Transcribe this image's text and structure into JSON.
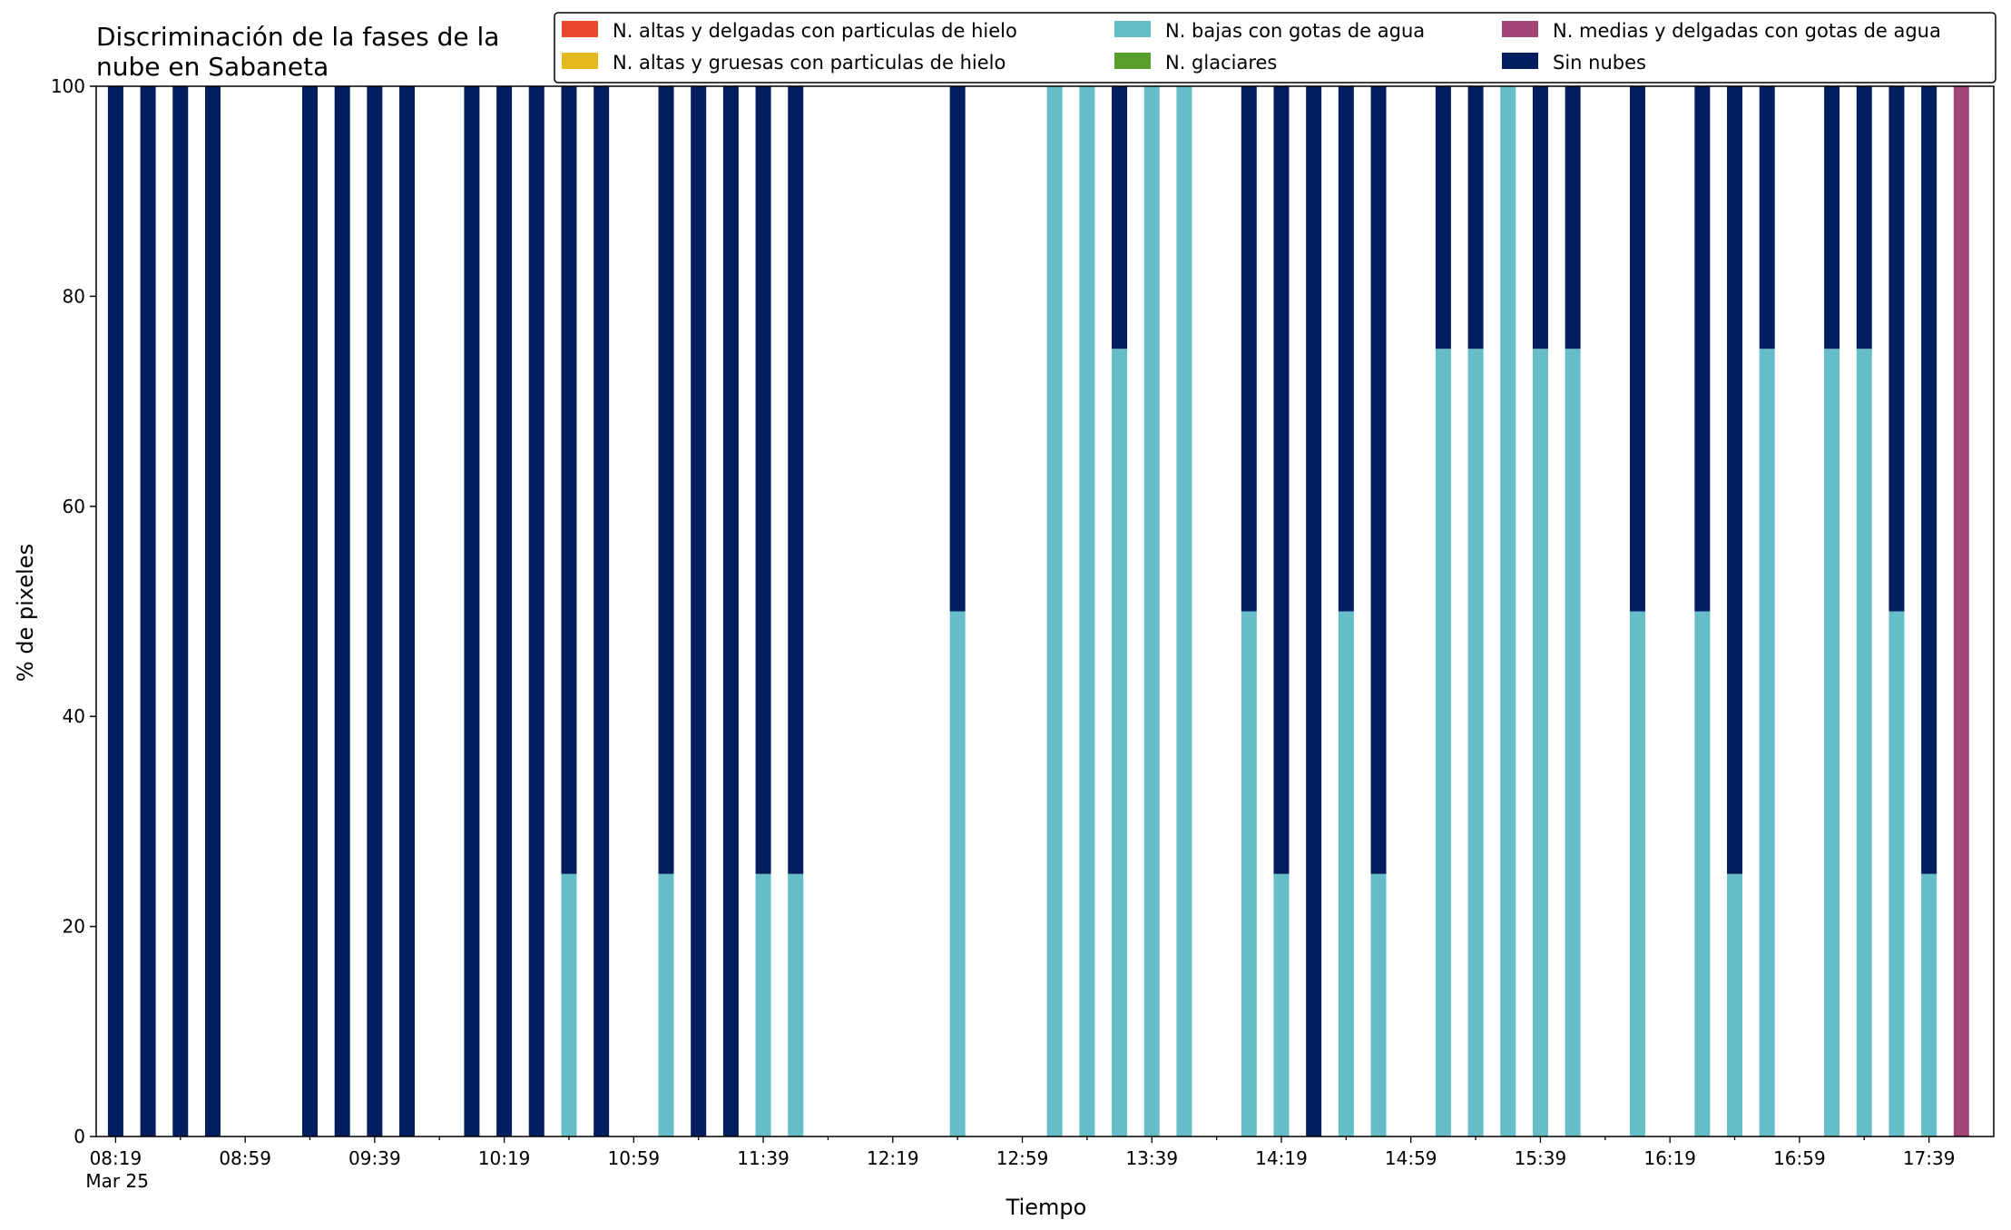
{
  "chart_data": {
    "type": "bar",
    "stacked": true,
    "title": "Discriminación de la fases de la\nnube en Sabaneta",
    "xlabel": "Tiempo",
    "ylabel": "% de pixeles",
    "ylim": [
      0,
      100
    ],
    "yticks": [
      0,
      20,
      40,
      60,
      80,
      100
    ],
    "x_minutes_from": "08:19",
    "xlim_minutes": [
      -6,
      580
    ],
    "xticks_major": [
      {
        "label": "08:19",
        "minutes": 0,
        "sublabel": "Mar 25"
      },
      {
        "label": "08:59",
        "minutes": 40,
        "sublabel": ""
      },
      {
        "label": "09:39",
        "minutes": 80,
        "sublabel": ""
      },
      {
        "label": "10:19",
        "minutes": 120,
        "sublabel": ""
      },
      {
        "label": "10:59",
        "minutes": 160,
        "sublabel": ""
      },
      {
        "label": "11:39",
        "minutes": 200,
        "sublabel": ""
      },
      {
        "label": "12:19",
        "minutes": 240,
        "sublabel": ""
      },
      {
        "label": "12:59",
        "minutes": 280,
        "sublabel": ""
      },
      {
        "label": "13:39",
        "minutes": 320,
        "sublabel": ""
      },
      {
        "label": "14:19",
        "minutes": 360,
        "sublabel": ""
      },
      {
        "label": "14:59",
        "minutes": 400,
        "sublabel": ""
      },
      {
        "label": "15:39",
        "minutes": 440,
        "sublabel": ""
      },
      {
        "label": "16:19",
        "minutes": 480,
        "sublabel": ""
      },
      {
        "label": "16:59",
        "minutes": 520,
        "sublabel": ""
      },
      {
        "label": "17:39",
        "minutes": 560,
        "sublabel": ""
      }
    ],
    "legend_location": "top-right",
    "legend_columns": 3,
    "legend": [
      {
        "name": "N. altas y delgadas con particulas de hielo",
        "color": "#e8492d"
      },
      {
        "name": "N. altas y gruesas con particulas de hielo",
        "color": "#e2b81c"
      },
      {
        "name": "N. bajas con gotas de agua",
        "color": "#64bdc8"
      },
      {
        "name": "N. glaciares",
        "color": "#5a9e2e"
      },
      {
        "name": "N. medias y delgadas con gotas de agua",
        "color": "#a24476"
      },
      {
        "name": "Sin nubes",
        "color": "#031e5f"
      }
    ],
    "stack_order": [
      "N. bajas con gotas de agua",
      "N. medias y delgadas con gotas de agua",
      "Sin nubes"
    ],
    "x": [
      "08:19",
      "08:29",
      "08:39",
      "08:49",
      "09:19",
      "09:29",
      "09:39",
      "09:49",
      "10:09",
      "10:19",
      "10:29",
      "10:39",
      "10:49",
      "11:09",
      "11:19",
      "11:29",
      "11:39",
      "11:49",
      "12:39",
      "13:09",
      "13:19",
      "13:29",
      "13:39",
      "13:49",
      "14:09",
      "14:19",
      "14:29",
      "14:39",
      "14:49",
      "15:09",
      "15:19",
      "15:29",
      "15:39",
      "15:49",
      "16:09",
      "16:29",
      "16:39",
      "16:49",
      "17:09",
      "17:19",
      "17:29",
      "17:39",
      "17:49"
    ],
    "x_minutes": [
      0,
      10,
      20,
      30,
      60,
      70,
      80,
      90,
      110,
      120,
      130,
      140,
      150,
      170,
      180,
      190,
      200,
      210,
      260,
      290,
      300,
      310,
      320,
      330,
      350,
      360,
      370,
      380,
      390,
      410,
      420,
      430,
      440,
      450,
      470,
      490,
      500,
      510,
      530,
      540,
      550,
      560,
      570
    ],
    "series": [
      {
        "name": "N. bajas con gotas de agua",
        "color": "#64bdc8",
        "values": [
          0,
          0,
          0,
          0,
          0,
          0,
          0,
          0,
          0,
          0,
          0,
          25,
          0,
          25,
          0,
          0,
          25,
          25,
          50,
          100,
          100,
          75,
          100,
          100,
          50,
          25,
          0,
          50,
          25,
          75,
          75,
          100,
          75,
          75,
          50,
          50,
          25,
          75,
          75,
          75,
          50,
          25,
          0
        ]
      },
      {
        "name": "N. medias y delgadas con gotas de agua",
        "color": "#a24476",
        "values": [
          0,
          0,
          0,
          0,
          0,
          0,
          0,
          0,
          0,
          0,
          0,
          0,
          0,
          0,
          0,
          0,
          0,
          0,
          0,
          0,
          0,
          0,
          0,
          0,
          0,
          0,
          0,
          0,
          0,
          0,
          0,
          0,
          0,
          0,
          0,
          0,
          0,
          0,
          0,
          0,
          0,
          0,
          100
        ]
      },
      {
        "name": "Sin nubes",
        "color": "#031e5f",
        "values": [
          100,
          100,
          100,
          100,
          100,
          100,
          100,
          100,
          100,
          100,
          100,
          75,
          100,
          75,
          100,
          100,
          75,
          75,
          50,
          0,
          0,
          25,
          0,
          0,
          50,
          75,
          100,
          50,
          75,
          25,
          25,
          0,
          25,
          25,
          50,
          50,
          75,
          25,
          25,
          25,
          50,
          75,
          0
        ]
      }
    ]
  }
}
